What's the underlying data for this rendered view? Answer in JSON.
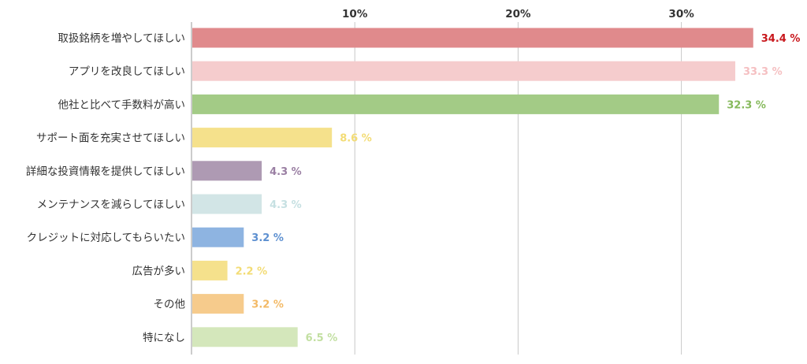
{
  "chart_data": {
    "type": "bar",
    "orientation": "horizontal",
    "categories": [
      "取扱銘柄を増やしてほしい",
      "アプリを改良してほしい",
      "他社と比べて手数料が高い",
      "サポート面を充実させてほしい",
      "詳細な投資情報を提供してほしい",
      "メンテナンスを減らしてほしい",
      "クレジットに対応してもらいたい",
      "広告が多い",
      "その他",
      "特になし"
    ],
    "values": [
      34.4,
      33.3,
      32.3,
      8.6,
      4.3,
      4.3,
      3.2,
      2.2,
      3.2,
      6.5
    ],
    "value_labels": [
      "34.4 %",
      "33.3 %",
      "32.3 %",
      "8.6 %",
      "4.3 %",
      "4.3 %",
      "3.2 %",
      "2.2 %",
      "3.2 %",
      "6.5 %"
    ],
    "bar_colors": [
      "#e08a8c",
      "#f5cccd",
      "#a3cb86",
      "#f5e18c",
      "#ae9ab3",
      "#d2e5e6",
      "#8eb4e1",
      "#f5e18c",
      "#f6cb8c",
      "#d4e7bb"
    ],
    "label_colors": [
      "#c8171c",
      "#f5c0c2",
      "#86b95c",
      "#f3dc75",
      "#9a7fa3",
      "#c6e0e2",
      "#5c8fd0",
      "#f3dc75",
      "#f3b965",
      "#c2dfa1"
    ],
    "xticks": [
      10,
      20,
      30
    ],
    "xtick_labels": [
      "10%",
      "20%",
      "30%"
    ],
    "xlim": [
      0,
      37
    ],
    "gridlines": true,
    "axis_position": "top",
    "title": "",
    "xlabel": "",
    "ylabel": ""
  }
}
